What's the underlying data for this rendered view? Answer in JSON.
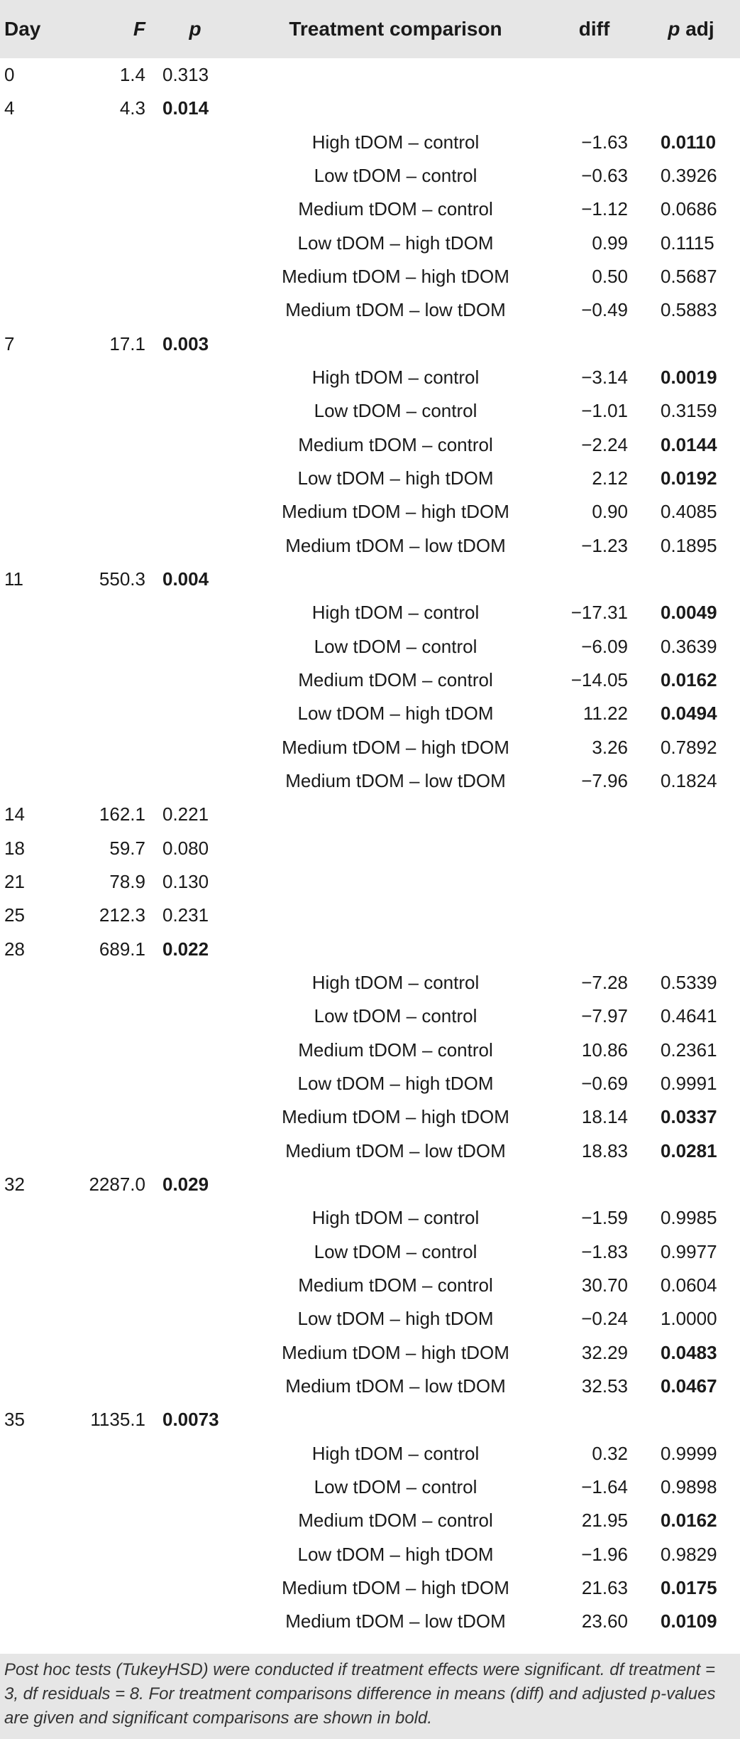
{
  "header": {
    "day": "Day",
    "f": "F",
    "p": "p",
    "comparison": "Treatment comparison",
    "diff": "diff",
    "p_adj_italic": "p",
    "p_adj_rest": " adj"
  },
  "rows": [
    {
      "kind": "day",
      "day": "0",
      "f": "1.4",
      "p": "0.313",
      "bold": false
    },
    {
      "kind": "day",
      "day": "4",
      "f": "4.3",
      "p": "0.014",
      "bold": true
    },
    {
      "kind": "cmp",
      "comparison": "High tDOM – control",
      "diff": "−1.63",
      "padj": "0.0110",
      "bold": true
    },
    {
      "kind": "cmp",
      "comparison": "Low tDOM – control",
      "diff": "−0.63",
      "padj": "0.3926",
      "bold": false
    },
    {
      "kind": "cmp",
      "comparison": "Medium tDOM – control",
      "diff": "−1.12",
      "padj": "0.0686",
      "bold": false
    },
    {
      "kind": "cmp",
      "comparison": "Low tDOM – high tDOM",
      "diff": "0.99",
      "padj": "0.1115",
      "bold": false
    },
    {
      "kind": "cmp",
      "comparison": "Medium tDOM – high tDOM",
      "diff": "0.50",
      "padj": "0.5687",
      "bold": false
    },
    {
      "kind": "cmp",
      "comparison": "Medium tDOM – low tDOM",
      "diff": "−0.49",
      "padj": "0.5883",
      "bold": false
    },
    {
      "kind": "day",
      "day": "7",
      "f": "17.1",
      "p": "0.003",
      "bold": true
    },
    {
      "kind": "cmp",
      "comparison": "High tDOM – control",
      "diff": "−3.14",
      "padj": "0.0019",
      "bold": true
    },
    {
      "kind": "cmp",
      "comparison": "Low tDOM – control",
      "diff": "−1.01",
      "padj": "0.3159",
      "bold": false
    },
    {
      "kind": "cmp",
      "comparison": "Medium tDOM – control",
      "diff": "−2.24",
      "padj": "0.0144",
      "bold": true
    },
    {
      "kind": "cmp",
      "comparison": "Low tDOM – high tDOM",
      "diff": "2.12",
      "padj": "0.0192",
      "bold": true
    },
    {
      "kind": "cmp",
      "comparison": "Medium tDOM – high tDOM",
      "diff": "0.90",
      "padj": "0.4085",
      "bold": false
    },
    {
      "kind": "cmp",
      "comparison": "Medium tDOM – low tDOM",
      "diff": "−1.23",
      "padj": "0.1895",
      "bold": false
    },
    {
      "kind": "day",
      "day": "11",
      "f": "550.3",
      "p": "0.004",
      "bold": true
    },
    {
      "kind": "cmp",
      "comparison": "High tDOM – control",
      "diff": "−17.31",
      "padj": "0.0049",
      "bold": true
    },
    {
      "kind": "cmp",
      "comparison": "Low tDOM – control",
      "diff": "−6.09",
      "padj": "0.3639",
      "bold": false
    },
    {
      "kind": "cmp",
      "comparison": "Medium tDOM – control",
      "diff": "−14.05",
      "padj": "0.0162",
      "bold": true
    },
    {
      "kind": "cmp",
      "comparison": "Low tDOM – high tDOM",
      "diff": "11.22",
      "padj": "0.0494",
      "bold": true
    },
    {
      "kind": "cmp",
      "comparison": "Medium tDOM – high tDOM",
      "diff": "3.26",
      "padj": "0.7892",
      "bold": false
    },
    {
      "kind": "cmp",
      "comparison": "Medium tDOM – low tDOM",
      "diff": "−7.96",
      "padj": "0.1824",
      "bold": false
    },
    {
      "kind": "day",
      "day": "14",
      "f": "162.1",
      "p": "0.221",
      "bold": false
    },
    {
      "kind": "day",
      "day": "18",
      "f": "59.7",
      "p": "0.080",
      "bold": false
    },
    {
      "kind": "day",
      "day": "21",
      "f": "78.9",
      "p": "0.130",
      "bold": false
    },
    {
      "kind": "day",
      "day": "25",
      "f": "212.3",
      "p": "0.231",
      "bold": false
    },
    {
      "kind": "day",
      "day": "28",
      "f": "689.1",
      "p": "0.022",
      "bold": true
    },
    {
      "kind": "cmp",
      "comparison": "High tDOM – control",
      "diff": "−7.28",
      "padj": "0.5339",
      "bold": false
    },
    {
      "kind": "cmp",
      "comparison": "Low tDOM – control",
      "diff": "−7.97",
      "padj": "0.4641",
      "bold": false
    },
    {
      "kind": "cmp",
      "comparison": "Medium tDOM – control",
      "diff": "10.86",
      "padj": "0.2361",
      "bold": false
    },
    {
      "kind": "cmp",
      "comparison": "Low tDOM – high tDOM",
      "diff": "−0.69",
      "padj": "0.9991",
      "bold": false
    },
    {
      "kind": "cmp",
      "comparison": "Medium tDOM – high tDOM",
      "diff": "18.14",
      "padj": "0.0337",
      "bold": true
    },
    {
      "kind": "cmp",
      "comparison": "Medium tDOM – low tDOM",
      "diff": "18.83",
      "padj": "0.0281",
      "bold": true
    },
    {
      "kind": "day",
      "day": "32",
      "f": "2287.0",
      "p": "0.029",
      "bold": true
    },
    {
      "kind": "cmp",
      "comparison": "High tDOM – control",
      "diff": "−1.59",
      "padj": "0.9985",
      "bold": false
    },
    {
      "kind": "cmp",
      "comparison": "Low tDOM – control",
      "diff": "−1.83",
      "padj": "0.9977",
      "bold": false
    },
    {
      "kind": "cmp",
      "comparison": "Medium tDOM – control",
      "diff": "30.70",
      "padj": "0.0604",
      "bold": false
    },
    {
      "kind": "cmp",
      "comparison": "Low tDOM – high tDOM",
      "diff": "−0.24",
      "padj": "1.0000",
      "bold": false
    },
    {
      "kind": "cmp",
      "comparison": "Medium tDOM – high tDOM",
      "diff": "32.29",
      "padj": "0.0483",
      "bold": true
    },
    {
      "kind": "cmp",
      "comparison": "Medium tDOM – low tDOM",
      "diff": "32.53",
      "padj": "0.0467",
      "bold": true
    },
    {
      "kind": "day",
      "day": "35",
      "f": "1135.1",
      "p": "0.0073",
      "bold": true
    },
    {
      "kind": "cmp",
      "comparison": "High tDOM – control",
      "diff": "0.32",
      "padj": "0.9999",
      "bold": false
    },
    {
      "kind": "cmp",
      "comparison": "Low tDOM – control",
      "diff": "−1.64",
      "padj": "0.9898",
      "bold": false
    },
    {
      "kind": "cmp",
      "comparison": "Medium tDOM – control",
      "diff": "21.95",
      "padj": "0.0162",
      "bold": true
    },
    {
      "kind": "cmp",
      "comparison": "Low tDOM – high tDOM",
      "diff": "−1.96",
      "padj": "0.9829",
      "bold": false
    },
    {
      "kind": "cmp",
      "comparison": "Medium tDOM – high tDOM",
      "diff": "21.63",
      "padj": "0.0175",
      "bold": true
    },
    {
      "kind": "cmp",
      "comparison": "Medium tDOM – low tDOM",
      "diff": "23.60",
      "padj": "0.0109",
      "bold": true
    }
  ],
  "footnote": "Post hoc tests (TukeyHSD) were conducted if treatment effects were significant. df treatment = 3, df residuals = 8. For treatment comparisons difference in means (diff) and adjusted p-values are given and significant comparisons are shown in bold."
}
